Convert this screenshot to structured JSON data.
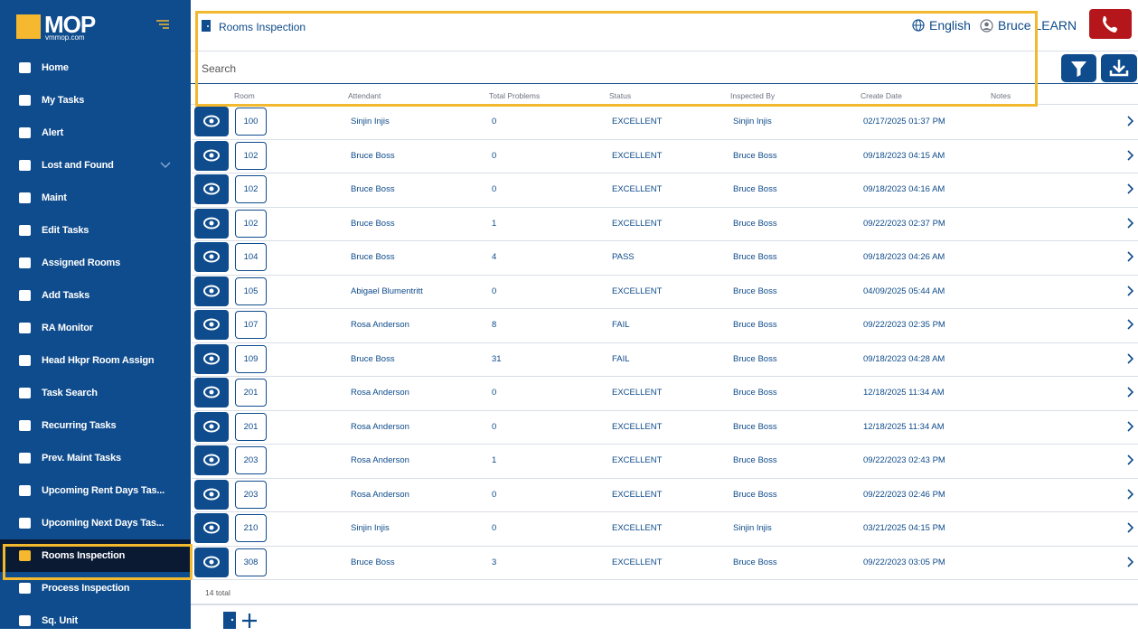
{
  "sidebar": {
    "logo": "MOP",
    "logo_sub": "vmmop.com",
    "menu": [
      "Home",
      "My Tasks",
      "Alert",
      "Lost and Found",
      "Maint",
      "Edit Tasks",
      "Assigned Rooms",
      "Add Tasks",
      "RA Monitor",
      "Head Hkpr Room Assign",
      "Task Search",
      "Recurring Tasks",
      "Prev. Maint Tasks",
      "Upcoming Rent Days Tas...",
      "Upcoming Next Days Tas...",
      "Rooms Inspection",
      "Process Inspection",
      "Sq. Unit"
    ],
    "active": "Rooms Inspection"
  },
  "header": {
    "title": "Rooms Inspection",
    "language": "English",
    "user": "Bruce LEARN"
  },
  "search": {
    "placeholder": "Search"
  },
  "table": {
    "columns": [
      "Room",
      "Attendant",
      "Total Problems",
      "Status",
      "Inspected By",
      "Create Date",
      "Notes"
    ],
    "rows": [
      [
        "100",
        "Sinjin Injis",
        "0",
        "EXCELLENT",
        "Sinjin Injis",
        "02/17/2025 01:37 PM"
      ],
      [
        "102",
        "Bruce Boss",
        "0",
        "EXCELLENT",
        "Bruce Boss",
        "09/18/2023 04:15 AM"
      ],
      [
        "102",
        "Bruce Boss",
        "0",
        "EXCELLENT",
        "Bruce Boss",
        "09/18/2023 04:16 AM"
      ],
      [
        "102",
        "Bruce Boss",
        "1",
        "EXCELLENT",
        "Bruce Boss",
        "09/22/2023 02:37 PM"
      ],
      [
        "104",
        "Bruce Boss",
        "4",
        "PASS",
        "Bruce Boss",
        "09/18/2023 04:26 AM"
      ],
      [
        "105",
        "Abigael Blumentritt",
        "0",
        "EXCELLENT",
        "Bruce Boss",
        "04/09/2025 05:44 AM"
      ],
      [
        "107",
        "Rosa Anderson",
        "8",
        "FAIL",
        "Bruce Boss",
        "09/22/2023 02:35 PM"
      ],
      [
        "109",
        "Bruce Boss",
        "31",
        "FAIL",
        "Bruce Boss",
        "09/18/2023 04:28 AM"
      ],
      [
        "201",
        "Rosa Anderson",
        "0",
        "EXCELLENT",
        "Bruce Boss",
        "12/18/2025 11:34 AM"
      ],
      [
        "201",
        "Rosa Anderson",
        "0",
        "EXCELLENT",
        "Bruce Boss",
        "12/18/2025 11:34 AM"
      ],
      [
        "203",
        "Rosa Anderson",
        "1",
        "EXCELLENT",
        "Bruce Boss",
        "09/22/2023 02:43 PM"
      ],
      [
        "203",
        "Rosa Anderson",
        "0",
        "EXCELLENT",
        "Bruce Boss",
        "09/22/2023 02:46 PM"
      ],
      [
        "210",
        "Sinjin Injis",
        "0",
        "EXCELLENT",
        "Sinjin Injis",
        "03/21/2025 04:15 PM"
      ],
      [
        "308",
        "Bruce Boss",
        "3",
        "EXCELLENT",
        "Bruce Boss",
        "09/22/2023 03:05 PM"
      ]
    ],
    "total": "14 total"
  }
}
